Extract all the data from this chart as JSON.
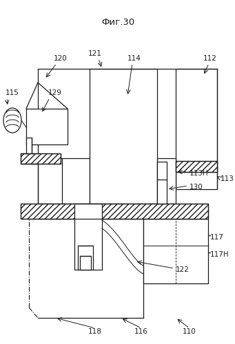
{
  "title": "Фиг.30",
  "bg_color": "#ffffff",
  "line_color": "#1a1a1a",
  "figsize": [
    3.41,
    5.0
  ],
  "dpi": 100
}
